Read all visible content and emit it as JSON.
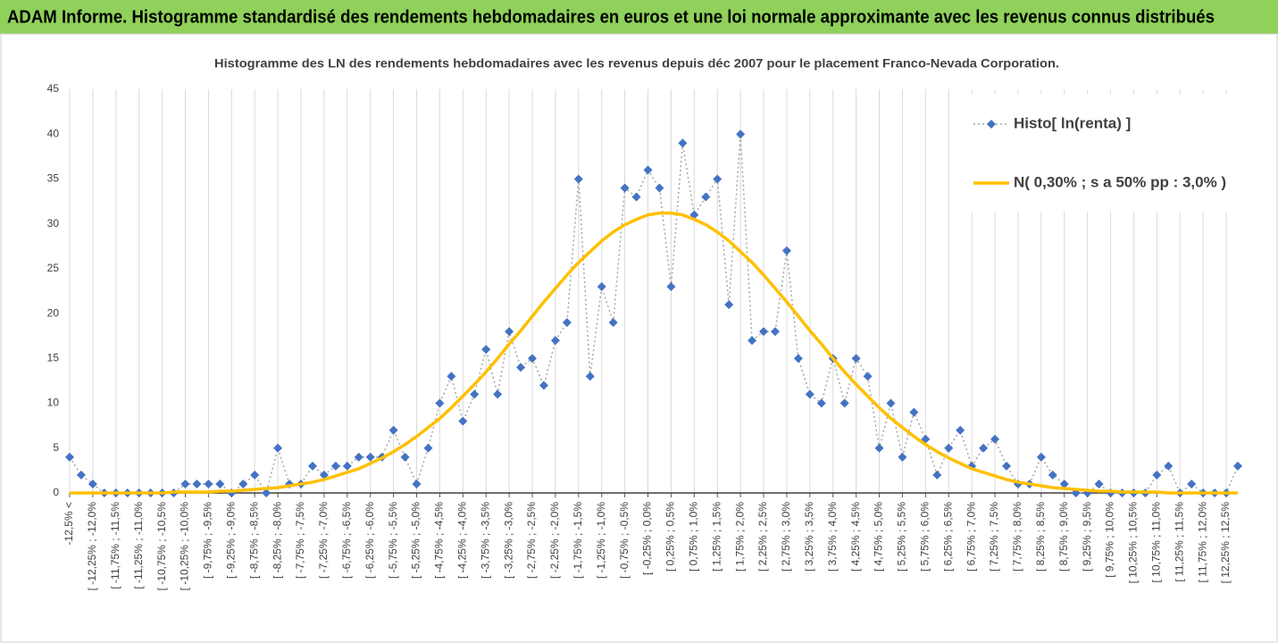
{
  "chart_data": {
    "type": "line",
    "title": "ADAM Informe. Histogramme standardisé des rendements hebdomadaires en euros et une loi normale approximante avec les revenus connus distribués",
    "subtitle": "Histogramme des LN des rendements hebdomadaires avec les revenus depuis déc 2007 pour le placement Franco-Nevada Corporation.",
    "categories": [
      "-12,5% <",
      null,
      "[ -12,25% ; -12,0%",
      null,
      "[ -11,75% ; -11,5%",
      null,
      "[ -11,25% ; -11,0%",
      null,
      "[ -10,75% ; -10,5%",
      null,
      "[ -10,25% ; -10,0%",
      null,
      "[ -9,75% ; -9,5%",
      null,
      "[ -9,25% ; -9,0%",
      null,
      "[ -8,75% ; -8,5%",
      null,
      "[ -8,25% ; -8,0%",
      null,
      "[ -7,75% ; -7,5%",
      null,
      "[ -7,25% ; -7,0%",
      null,
      "[ -6,75% ; -6,5%",
      null,
      "[ -6,25% ; -6,0%",
      null,
      "[ -5,75% ; -5,5%",
      null,
      "[ -5,25% ; -5,0%",
      null,
      "[ -4,75% ; -4,5%",
      null,
      "[ -4,25% ; -4,0%",
      null,
      "[ -3,75% ; -3,5%",
      null,
      "[ -3,25% ; -3,0%",
      null,
      "[ -2,75% ; -2,5%",
      null,
      "[ -2,25% ; -2,0%",
      null,
      "[ -1,75% ; -1,5%",
      null,
      "[ -1,25% ; -1,0%",
      null,
      "[ -0,75% ; -0,5%",
      null,
      "[ -0,25% ; 0,0%",
      null,
      "[ 0,25% ; 0,5%",
      null,
      "[ 0,75% ; 1,0%",
      null,
      "[ 1,25% ; 1,5%",
      null,
      "[ 1,75% ; 2,0%",
      null,
      "[ 2,25% ; 2,5%",
      null,
      "[ 2,75% ; 3,0%",
      null,
      "[ 3,25% ; 3,5%",
      null,
      "[ 3,75% ; 4,0%",
      null,
      "[ 4,25% ; 4,5%",
      null,
      "[ 4,75% ; 5,0%",
      null,
      "[ 5,25% ; 5,5%",
      null,
      "[ 5,75% ; 6,0%",
      null,
      "[ 6,25% ; 6,5%",
      null,
      "[ 6,75% ; 7,0%",
      null,
      "[ 7,25% ; 7,5%",
      null,
      "[ 7,75% ; 8,0%",
      null,
      "[ 8,25% ; 8,5%",
      null,
      "[ 8,75% ; 9,0%",
      null,
      "[ 9,25% ; 9,5%",
      null,
      "[ 9,75% ; 10,0%",
      null,
      "[ 10,25% ; 10,5%",
      null,
      "[ 10,75% ; 11,0%",
      null,
      "[ 11,25% ; 11,5%",
      null,
      "[ 11,75% ; 12,0%",
      null,
      "[ 12,25% ; 12,5%",
      null
    ],
    "series": [
      {
        "name": "Histo[ ln(renta) ]",
        "color": "#4472c4",
        "line_color": "#a6a6a6",
        "line_style": "dotted",
        "marker": "diamond",
        "values": [
          4,
          2,
          1,
          0,
          0,
          0,
          0,
          0,
          0,
          0,
          1,
          1,
          1,
          1,
          0,
          1,
          2,
          0,
          5,
          1,
          1,
          3,
          2,
          3,
          3,
          4,
          4,
          4,
          7,
          4,
          1,
          5,
          10,
          13,
          8,
          11,
          16,
          11,
          18,
          14,
          15,
          12,
          17,
          19,
          35,
          13,
          23,
          19,
          34,
          33,
          36,
          34,
          23,
          39,
          31,
          33,
          35,
          21,
          40,
          17,
          18,
          18,
          27,
          15,
          11,
          10,
          15,
          10,
          15,
          13,
          5,
          10,
          4,
          9,
          6,
          2,
          5,
          7,
          3,
          5,
          6,
          3,
          1,
          1,
          4,
          2,
          1,
          0,
          0,
          1,
          0,
          0,
          0,
          0,
          2,
          3,
          0,
          1,
          0,
          0,
          0,
          3
        ]
      },
      {
        "name": "N( 0,30% ; s a 50% pp : 3,0% )",
        "color": "#ffc000",
        "line_color": "#ffc000",
        "line_style": "solid",
        "marker": "none",
        "values": [
          0,
          0,
          0,
          0,
          0,
          0,
          0,
          0,
          0,
          0.1,
          0.1,
          0.1,
          0.1,
          0.2,
          0.2,
          0.3,
          0.4,
          0.5,
          0.6,
          0.8,
          1.0,
          1.2,
          1.5,
          1.9,
          2.3,
          2.7,
          3.3,
          3.9,
          4.6,
          5.4,
          6.3,
          7.3,
          8.3,
          9.5,
          10.8,
          12.1,
          13.5,
          15.0,
          16.6,
          18.1,
          19.7,
          21.3,
          22.8,
          24.3,
          25.7,
          26.9,
          28.1,
          29.1,
          29.9,
          30.5,
          31.0,
          31.2,
          31.2,
          31.0,
          30.5,
          29.9,
          29.1,
          28.1,
          26.9,
          25.7,
          24.3,
          22.8,
          21.3,
          19.7,
          18.1,
          16.6,
          15.0,
          13.5,
          12.1,
          10.8,
          9.5,
          8.3,
          7.3,
          6.3,
          5.4,
          4.6,
          3.9,
          3.3,
          2.7,
          2.3,
          1.9,
          1.5,
          1.2,
          1.0,
          0.8,
          0.6,
          0.5,
          0.4,
          0.3,
          0.2,
          0.2,
          0.1,
          0.1,
          0.1,
          0.1,
          0,
          0,
          0,
          0,
          0,
          0,
          0
        ]
      }
    ],
    "ylim": [
      0,
      45
    ],
    "yticks": [
      0,
      5,
      10,
      15,
      20,
      25,
      30,
      35,
      40,
      45
    ],
    "grid": "x",
    "legend": "top-right"
  }
}
